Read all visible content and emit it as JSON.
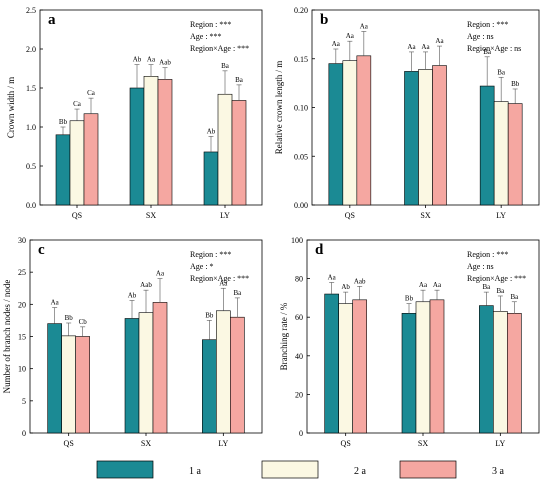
{
  "colors": {
    "1 a": "#1b8a94",
    "2 a": "#fbf8e3",
    "3 a": "#f5a7a1",
    "axis": "#000000"
  },
  "legend": {
    "items": [
      "1 a",
      "2 a",
      "3 a"
    ],
    "placement": "bottom"
  },
  "chart_data": [
    {
      "type": "bar",
      "panel_label": "a",
      "ylabel": "Crown width / m",
      "categories": [
        "QS",
        "SX",
        "LY"
      ],
      "ylim": [
        0,
        2.5
      ],
      "yticks": [
        0.0,
        0.5,
        1.0,
        1.5,
        2.0,
        2.5
      ],
      "tick_decimals": 1,
      "stats": [
        "Region : ***",
        "Age : ***",
        "Region×Age : ***"
      ],
      "series": [
        {
          "name": "1 a",
          "values": [
            0.9,
            1.5,
            0.68
          ],
          "errors": [
            0.1,
            0.3,
            0.2
          ],
          "labels": [
            "Bb",
            "Ab",
            "Ab"
          ]
        },
        {
          "name": "2 a",
          "values": [
            1.08,
            1.65,
            1.42
          ],
          "errors": [
            0.15,
            0.15,
            0.3
          ],
          "labels": [
            "Ca",
            "Aa",
            "Ba"
          ]
        },
        {
          "name": "3 a",
          "values": [
            1.17,
            1.61,
            1.34
          ],
          "errors": [
            0.2,
            0.15,
            0.2
          ],
          "labels": [
            "Ca",
            "Aab",
            "Ba"
          ]
        }
      ]
    },
    {
      "type": "bar",
      "panel_label": "b",
      "ylabel": "Relative crown length / m",
      "categories": [
        "QS",
        "SX",
        "LY"
      ],
      "ylim": [
        0,
        0.2
      ],
      "yticks": [
        0.0,
        0.05,
        0.1,
        0.15,
        0.2
      ],
      "tick_decimals": 2,
      "stats": [
        "Region : ***",
        "Age : ns",
        "Region×Age : ns"
      ],
      "series": [
        {
          "name": "1 a",
          "values": [
            0.145,
            0.137,
            0.122
          ],
          "errors": [
            0.015,
            0.02,
            0.03
          ],
          "labels": [
            "Aa",
            "Aa",
            "Ba"
          ]
        },
        {
          "name": "2 a",
          "values": [
            0.148,
            0.139,
            0.106
          ],
          "errors": [
            0.02,
            0.018,
            0.025
          ],
          "labels": [
            "Aa",
            "Aa",
            "Ba"
          ]
        },
        {
          "name": "3 a",
          "values": [
            0.153,
            0.143,
            0.104
          ],
          "errors": [
            0.025,
            0.02,
            0.015
          ],
          "labels": [
            "Aa",
            "Aa",
            "Bb"
          ]
        }
      ]
    },
    {
      "type": "bar",
      "panel_label": "c",
      "ylabel": "Number of branch nodes / node",
      "categories": [
        "QS",
        "SX",
        "LY"
      ],
      "ylim": [
        0,
        30
      ],
      "yticks": [
        0,
        5,
        10,
        15,
        20,
        25,
        30
      ],
      "tick_decimals": 0,
      "stats": [
        "Region : ***",
        "Age : *",
        "Region×Age : ***"
      ],
      "series": [
        {
          "name": "1 a",
          "values": [
            17.0,
            17.8,
            14.5
          ],
          "errors": [
            2.5,
            2.8,
            3.0
          ],
          "labels": [
            "Aa",
            "Ab",
            "Bb"
          ]
        },
        {
          "name": "2 a",
          "values": [
            15.1,
            18.7,
            19.0
          ],
          "errors": [
            2.0,
            3.5,
            3.5
          ],
          "labels": [
            "Bb",
            "Aab",
            "Aa"
          ]
        },
        {
          "name": "3 a",
          "values": [
            15.0,
            20.3,
            18.0
          ],
          "errors": [
            1.5,
            3.7,
            3.0
          ],
          "labels": [
            "Cb",
            "Aa",
            "Ba"
          ]
        }
      ]
    },
    {
      "type": "bar",
      "panel_label": "d",
      "ylabel": "Branching rate / %",
      "categories": [
        "QS",
        "SX",
        "LY"
      ],
      "ylim": [
        0,
        100
      ],
      "yticks": [
        0,
        20,
        40,
        60,
        80,
        100
      ],
      "tick_decimals": 0,
      "stats": [
        "Region : ***",
        "Age : ns",
        "Region×Age : ***"
      ],
      "series": [
        {
          "name": "1 a",
          "values": [
            72,
            62,
            66
          ],
          "errors": [
            6,
            5,
            7
          ],
          "labels": [
            "Aa",
            "Bb",
            "Ba"
          ]
        },
        {
          "name": "2 a",
          "values": [
            67,
            68,
            63
          ],
          "errors": [
            6,
            6,
            8
          ],
          "labels": [
            "Ab",
            "Aa",
            "Ba"
          ]
        },
        {
          "name": "3 a",
          "values": [
            69,
            69,
            62
          ],
          "errors": [
            7,
            5,
            6
          ],
          "labels": [
            "Aab",
            "Aa",
            "Ba"
          ]
        }
      ]
    }
  ]
}
